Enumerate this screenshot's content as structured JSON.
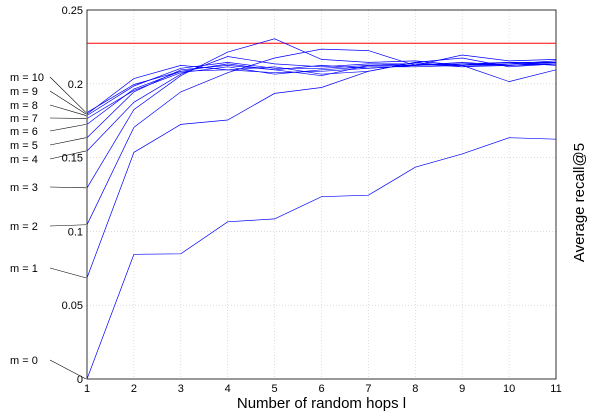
{
  "chart_data": {
    "type": "line",
    "title": "",
    "xlabel": "Number of random hops l",
    "ylabel": "Average recall@5",
    "x": [
      1,
      2,
      3,
      4,
      5,
      6,
      7,
      8,
      9,
      10,
      11
    ],
    "xlim": [
      1,
      11
    ],
    "ylim": [
      0,
      0.25
    ],
    "x_ticks": [
      "1",
      "2",
      "3",
      "4",
      "5",
      "6",
      "7",
      "8",
      "9",
      "10",
      "11"
    ],
    "y_ticks": [
      "0",
      "0.05",
      "0.1",
      "0.15",
      "0.2",
      "0.25"
    ],
    "y_tick_values": [
      0,
      0.05,
      0.1,
      0.15,
      0.2,
      0.25
    ],
    "grid": true,
    "series_color": "#0000ff",
    "reference_color": "#ff0000",
    "reference_line": 0.2275,
    "series": [
      {
        "label": "m = 0",
        "values": [
          0.0,
          0.0845,
          0.0848,
          0.1065,
          0.1085,
          0.1235,
          0.1245,
          0.1435,
          0.1525,
          0.1635,
          0.1625
        ]
      },
      {
        "label": "m = 1",
        "values": [
          0.0685,
          0.1535,
          0.1725,
          0.1755,
          0.1935,
          0.1975,
          0.2085,
          0.2145,
          0.2115,
          0.2125,
          0.2135
        ]
      },
      {
        "label": "m = 2",
        "values": [
          0.1045,
          0.1705,
          0.1945,
          0.2075,
          0.2175,
          0.2235,
          0.2225,
          0.2125,
          0.2195,
          0.2155,
          0.2165
        ]
      },
      {
        "label": "m = 3",
        "values": [
          0.1295,
          0.1825,
          0.2055,
          0.2215,
          0.2305,
          0.2165,
          0.2145,
          0.2155,
          0.2125,
          0.2015,
          0.2095
        ]
      },
      {
        "label": "m = 4",
        "values": [
          0.1545,
          0.1875,
          0.2065,
          0.2185,
          0.2135,
          0.2115,
          0.2135,
          0.2135,
          0.2115,
          0.2135,
          0.2155
        ]
      },
      {
        "label": "m = 5",
        "values": [
          0.1635,
          0.1945,
          0.2095,
          0.2125,
          0.2095,
          0.2055,
          0.2125,
          0.2125,
          0.2135,
          0.2145,
          0.2145
        ]
      },
      {
        "label": "m = 6",
        "values": [
          0.1725,
          0.1965,
          0.2085,
          0.2095,
          0.2075,
          0.2085,
          0.2105,
          0.2125,
          0.2145,
          0.2125,
          0.2145
        ]
      },
      {
        "label": "m = 7",
        "values": [
          0.1765,
          0.1955,
          0.2075,
          0.2115,
          0.2065,
          0.2095,
          0.2115,
          0.2115,
          0.2125,
          0.2135,
          0.2145
        ]
      },
      {
        "label": "m = 8",
        "values": [
          0.1785,
          0.1985,
          0.2105,
          0.2145,
          0.2105,
          0.2105,
          0.2125,
          0.2135,
          0.2125,
          0.2145,
          0.2125
        ]
      },
      {
        "label": "m = 9",
        "values": [
          0.1795,
          0.2035,
          0.2125,
          0.2095,
          0.2115,
          0.2065,
          0.2085,
          0.2145,
          0.2175,
          0.2115,
          0.2135
        ]
      },
      {
        "label": "m = 10",
        "values": [
          0.1805,
          0.1995,
          0.2085,
          0.2135,
          0.2095,
          0.2125,
          0.2105,
          0.2125,
          0.2135,
          0.2125,
          0.2135
        ]
      }
    ]
  }
}
